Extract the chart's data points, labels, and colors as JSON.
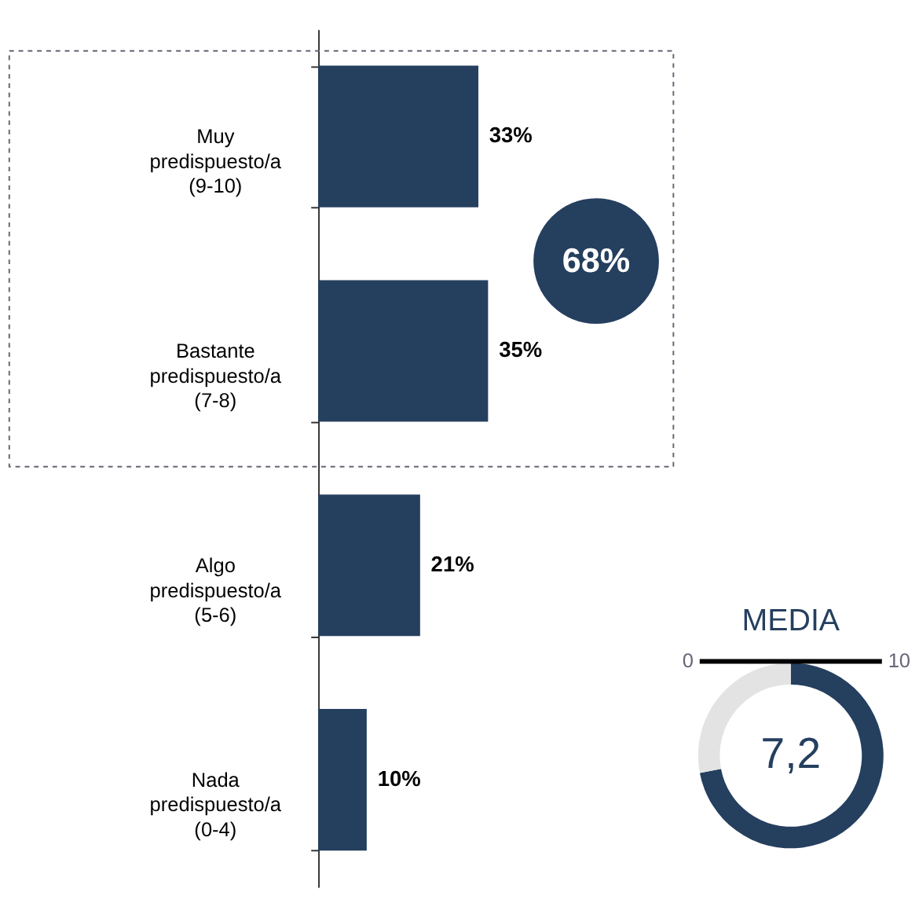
{
  "chart_data": [
    {
      "type": "bar",
      "orientation": "horizontal",
      "categories": [
        "Muy\npredispuesto/a\n(9-10)",
        "Bastante\npredispuesto/a\n(7-8)",
        "Algo\npredispuesto/a\n(5-6)",
        "Nada\npredispuesto/a\n(0-4)"
      ],
      "values": [
        33,
        35,
        21,
        10
      ],
      "value_labels": [
        "33%",
        "35%",
        "21%",
        "10%"
      ],
      "color": "#253f5f",
      "annotations": [
        "68%"
      ],
      "grid": false
    },
    {
      "type": "donut",
      "title": "MEDIA",
      "categories": [
        null,
        null
      ],
      "values": [
        7.2,
        2.8
      ],
      "colors": [
        "#253f5f",
        "#e3e3e3"
      ],
      "value_labels": [
        "7,2",
        null
      ],
      "annotations": [
        "0",
        "10"
      ]
    }
  ]
}
